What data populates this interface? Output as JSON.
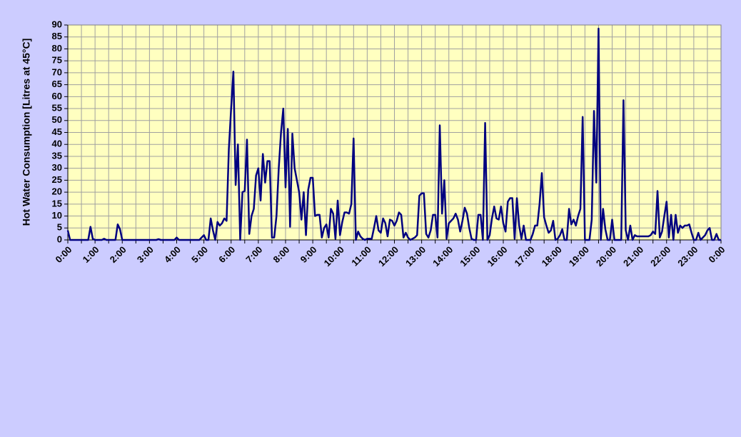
{
  "chart_data": {
    "type": "line",
    "y_label": "Hot Water Consumption [Litres at 45°C]",
    "categories": [
      "0:00",
      null,
      null,
      null,
      null,
      null,
      null,
      null,
      null,
      null,
      null,
      null,
      "1:00",
      null,
      null,
      null,
      null,
      null,
      null,
      null,
      null,
      null,
      null,
      null,
      "2:00",
      null,
      null,
      null,
      null,
      null,
      null,
      null,
      null,
      null,
      null,
      null,
      "3:00",
      null,
      null,
      null,
      null,
      null,
      null,
      null,
      null,
      null,
      null,
      null,
      "4:00",
      null,
      null,
      null,
      null,
      null,
      null,
      null,
      null,
      null,
      null,
      null,
      "5:00",
      null,
      null,
      null,
      null,
      null,
      null,
      null,
      null,
      null,
      null,
      null,
      "6:00",
      null,
      null,
      null,
      null,
      null,
      null,
      null,
      null,
      null,
      null,
      null,
      "7:00",
      null,
      null,
      null,
      null,
      null,
      null,
      null,
      null,
      null,
      null,
      null,
      "8:00",
      null,
      null,
      null,
      null,
      null,
      null,
      null,
      null,
      null,
      null,
      null,
      "9:00",
      null,
      null,
      null,
      null,
      null,
      null,
      null,
      null,
      null,
      null,
      null,
      "10:00",
      null,
      null,
      null,
      null,
      null,
      null,
      null,
      null,
      null,
      null,
      null,
      "11:00",
      null,
      null,
      null,
      null,
      null,
      null,
      null,
      null,
      null,
      null,
      null,
      "12:00",
      null,
      null,
      null,
      null,
      null,
      null,
      null,
      null,
      null,
      null,
      null,
      "13:00",
      null,
      null,
      null,
      null,
      null,
      null,
      null,
      null,
      null,
      null,
      null,
      "14:00",
      null,
      null,
      null,
      null,
      null,
      null,
      null,
      null,
      null,
      null,
      null,
      "15:00",
      null,
      null,
      null,
      null,
      null,
      null,
      null,
      null,
      null,
      null,
      null,
      "16:00",
      null,
      null,
      null,
      null,
      null,
      null,
      null,
      null,
      null,
      null,
      null,
      "17:00",
      null,
      null,
      null,
      null,
      null,
      null,
      null,
      null,
      null,
      null,
      null,
      "18:00",
      null,
      null,
      null,
      null,
      null,
      null,
      null,
      null,
      null,
      null,
      null,
      "19:00",
      null,
      null,
      null,
      null,
      null,
      null,
      null,
      null,
      null,
      null,
      null,
      "20:00",
      null,
      null,
      null,
      null,
      null,
      null,
      null,
      null,
      null,
      null,
      null,
      "21:00",
      null,
      null,
      null,
      null,
      null,
      null,
      null,
      null,
      null,
      null,
      null,
      "22:00",
      null,
      null,
      null,
      null,
      null,
      null,
      null,
      null,
      null,
      null,
      null,
      "23:00",
      null,
      null,
      null,
      null,
      null,
      null,
      null,
      null,
      null,
      null,
      null,
      "0:00"
    ],
    "series": [
      {
        "color": "#000080",
        "values": [
          4,
          0,
          0,
          0,
          0,
          0,
          0,
          0,
          0,
          0,
          5.5,
          0.5,
          0,
          0,
          0,
          0,
          0.5,
          0,
          0,
          0,
          0,
          0,
          6.5,
          4.5,
          0,
          0,
          0,
          0,
          0,
          0,
          0,
          0,
          0,
          0,
          0,
          0,
          0,
          0,
          0,
          0,
          0.3,
          0,
          0,
          0,
          0,
          0,
          0,
          0,
          1,
          0,
          0,
          0,
          0,
          0,
          0,
          0,
          0,
          0,
          0,
          1,
          2,
          0,
          0,
          9,
          4,
          0,
          7.5,
          6,
          7,
          9,
          8,
          38,
          55,
          70.5,
          23,
          40,
          0,
          20,
          20.5,
          42,
          2.5,
          10,
          13,
          27,
          30,
          16.5,
          36,
          24,
          33,
          33,
          1,
          1,
          10,
          30,
          45,
          55,
          22,
          46.5,
          5.5,
          44.5,
          30,
          25,
          20,
          8.5,
          20,
          2,
          21,
          26,
          26,
          10,
          10.5,
          10.5,
          1,
          5,
          6.5,
          1,
          13,
          11,
          0.5,
          16.5,
          2,
          7.5,
          11.5,
          11.5,
          11,
          15,
          42.5,
          0,
          3.5,
          1.5,
          0.5,
          0,
          0.5,
          0.5,
          0.5,
          5,
          10,
          4,
          3,
          9,
          7,
          1.5,
          8.5,
          8,
          6,
          8,
          11.5,
          10.5,
          1,
          3,
          1,
          0,
          0.5,
          1,
          2,
          18.5,
          19.5,
          19.5,
          2.5,
          1,
          4,
          10.5,
          10.5,
          1,
          48,
          11,
          25,
          0.5,
          7,
          8,
          9,
          11,
          8.5,
          3.5,
          8,
          13.5,
          11,
          5,
          0.5,
          0,
          0,
          10.5,
          10.5,
          0,
          49,
          0,
          2,
          9,
          14,
          9,
          8.5,
          14,
          7,
          3.5,
          16,
          17.5,
          17.5,
          0.5,
          17.5,
          6,
          0.5,
          6,
          0,
          0,
          0,
          2.5,
          6,
          6,
          15,
          28,
          9.5,
          6,
          3,
          4,
          8,
          0,
          0.5,
          2,
          4.5,
          0,
          0,
          13,
          6.5,
          8.5,
          6,
          10,
          13,
          51.5,
          0,
          0,
          0,
          8.5,
          54,
          24,
          88.5,
          0,
          13,
          4.5,
          0,
          0,
          8.5,
          0,
          0,
          0,
          0,
          58.5,
          4,
          0,
          6,
          0,
          2,
          1.5,
          1.5,
          1.5,
          1.5,
          1.5,
          1.5,
          2,
          3.5,
          2.5,
          20.5,
          1,
          3.5,
          10,
          16,
          1,
          10.5,
          0,
          10.5,
          3,
          6,
          5,
          6,
          6,
          6.5,
          3,
          0,
          0,
          3,
          0,
          1,
          2,
          4,
          5,
          0,
          0,
          2.5,
          0,
          0
        ]
      }
    ],
    "ylim": [
      0,
      90
    ],
    "yticks": [
      0,
      5,
      10,
      15,
      20,
      25,
      30,
      35,
      40,
      45,
      50,
      55,
      60,
      65,
      70,
      75,
      80,
      85,
      90
    ],
    "grid": true
  }
}
